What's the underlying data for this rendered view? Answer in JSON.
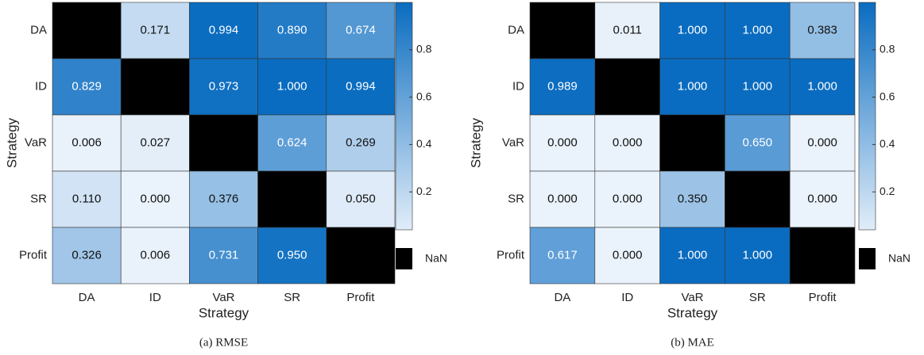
{
  "chart_data": [
    {
      "type": "heatmap",
      "caption": "(a) RMSE",
      "xlabel": "Strategy",
      "ylabel": "Strategy",
      "x_categories": [
        "DA",
        "ID",
        "VaR",
        "SR",
        "Profit"
      ],
      "y_categories": [
        "DA",
        "ID",
        "VaR",
        "SR",
        "Profit"
      ],
      "values": [
        [
          null,
          0.171,
          0.994,
          0.89,
          0.674
        ],
        [
          0.829,
          null,
          0.973,
          1.0,
          0.994
        ],
        [
          0.006,
          0.027,
          null,
          0.624,
          0.269
        ],
        [
          0.11,
          0.0,
          0.376,
          null,
          0.05
        ],
        [
          0.326,
          0.006,
          0.731,
          0.95,
          null
        ]
      ],
      "value_labels": [
        [
          null,
          "0.171",
          "0.994",
          "0.890",
          "0.674"
        ],
        [
          "0.829",
          null,
          "0.973",
          "1.000",
          "0.994"
        ],
        [
          "0.006",
          "0.027",
          null,
          "0.624",
          "0.269"
        ],
        [
          "0.110",
          "0.000",
          "0.376",
          null,
          "0.050"
        ],
        [
          "0.326",
          "0.006",
          "0.731",
          "0.950",
          null
        ]
      ],
      "clim": [
        0.04,
        1.0
      ],
      "cticks": [
        0.2,
        0.4,
        0.6,
        0.8
      ],
      "colormap": [
        "#eaf2fb",
        "#0a6cc0"
      ],
      "nan_color": "#000000",
      "nan_label": "NaN"
    },
    {
      "type": "heatmap",
      "caption": "(b) MAE",
      "xlabel": "Strategy",
      "ylabel": "Strategy",
      "x_categories": [
        "DA",
        "ID",
        "VaR",
        "SR",
        "Profit"
      ],
      "y_categories": [
        "DA",
        "ID",
        "VaR",
        "SR",
        "Profit"
      ],
      "values": [
        [
          null,
          0.011,
          1.0,
          1.0,
          0.383
        ],
        [
          0.989,
          null,
          1.0,
          1.0,
          1.0
        ],
        [
          0.0,
          0.0,
          null,
          0.65,
          0.0
        ],
        [
          0.0,
          0.0,
          0.35,
          null,
          0.0
        ],
        [
          0.617,
          0.0,
          1.0,
          1.0,
          null
        ]
      ],
      "value_labels": [
        [
          null,
          "0.011",
          "1.000",
          "1.000",
          "0.383"
        ],
        [
          "0.989",
          null,
          "1.000",
          "1.000",
          "1.000"
        ],
        [
          "0.000",
          "0.000",
          null,
          "0.650",
          "0.000"
        ],
        [
          "0.000",
          "0.000",
          "0.350",
          null,
          "0.000"
        ],
        [
          "0.617",
          "0.000",
          "1.000",
          "1.000",
          null
        ]
      ],
      "clim": [
        0.04,
        1.0
      ],
      "cticks": [
        0.2,
        0.4,
        0.6,
        0.8
      ],
      "colormap": [
        "#eaf2fb",
        "#0a6cc0"
      ],
      "nan_color": "#000000",
      "nan_label": "NaN"
    }
  ]
}
